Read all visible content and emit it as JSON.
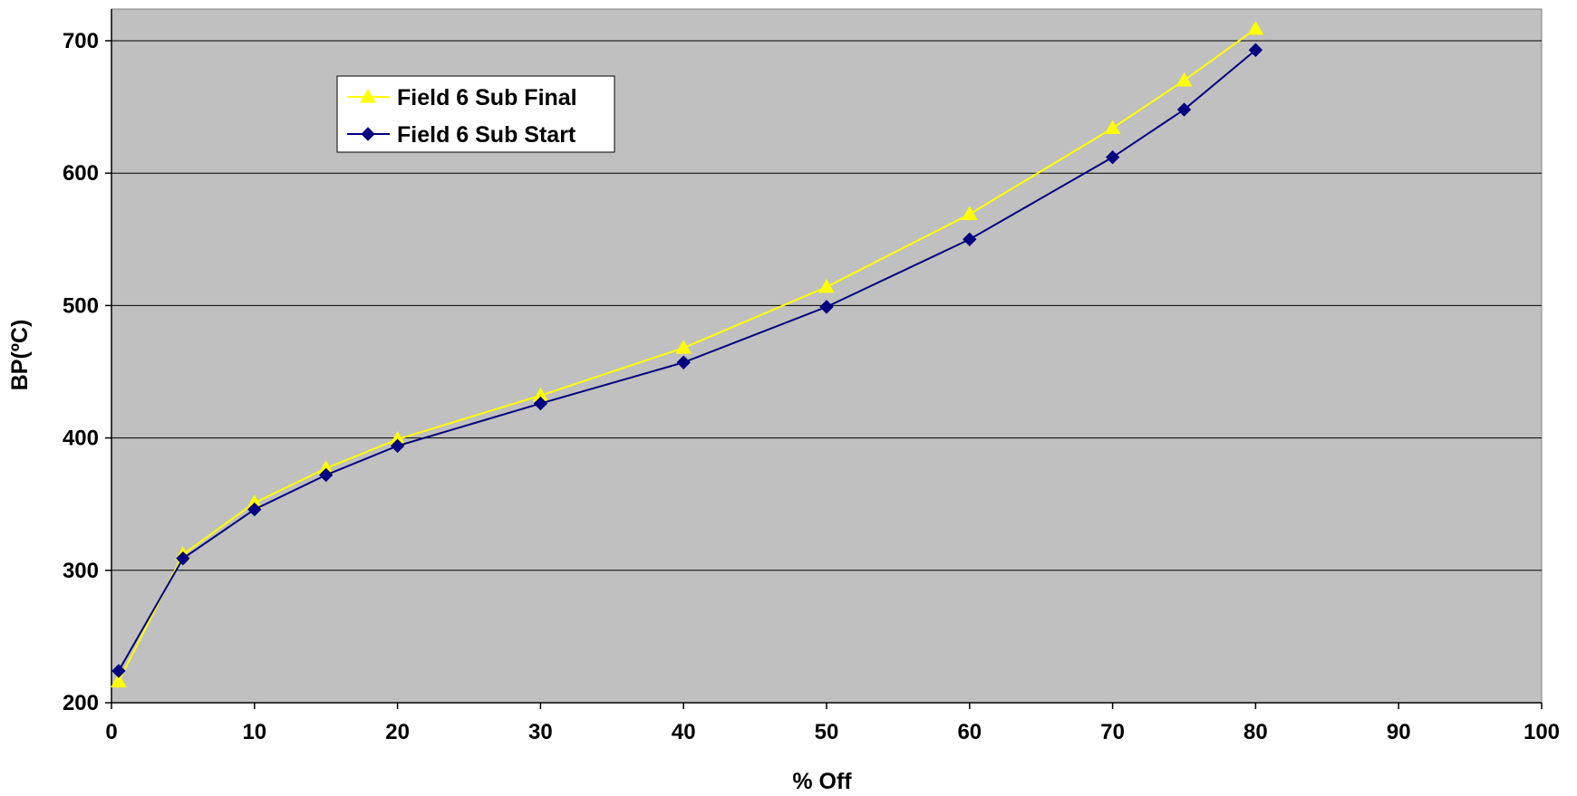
{
  "chart_data": {
    "type": "line",
    "title": "",
    "xlabel": "% Off",
    "ylabel": "BP(ºC)",
    "xlim": [
      0,
      100
    ],
    "ylim": [
      200,
      700
    ],
    "xticks": [
      0,
      10,
      20,
      30,
      40,
      50,
      60,
      70,
      80,
      90,
      100
    ],
    "yticks": [
      200,
      300,
      400,
      500,
      600,
      700
    ],
    "grid": "horizontal",
    "legend_position": "top-left",
    "plot_background": "#c0c0c0",
    "series": [
      {
        "name": "Field 6 Sub Final",
        "color": "#ffff00",
        "marker": "triangle",
        "x": [
          0.5,
          5,
          10,
          15,
          20,
          30,
          40,
          50,
          60,
          70,
          75,
          80
        ],
        "y": [
          216,
          312,
          351,
          377,
          399,
          432,
          468,
          514,
          569,
          634,
          670,
          709
        ]
      },
      {
        "name": "Field 6 Sub Start",
        "color": "#000080",
        "marker": "diamond",
        "x": [
          0.5,
          5,
          10,
          15,
          20,
          30,
          40,
          50,
          60,
          70,
          75,
          80
        ],
        "y": [
          224,
          309,
          346,
          372,
          394,
          426,
          457,
          499,
          550,
          612,
          648,
          693
        ]
      }
    ]
  }
}
